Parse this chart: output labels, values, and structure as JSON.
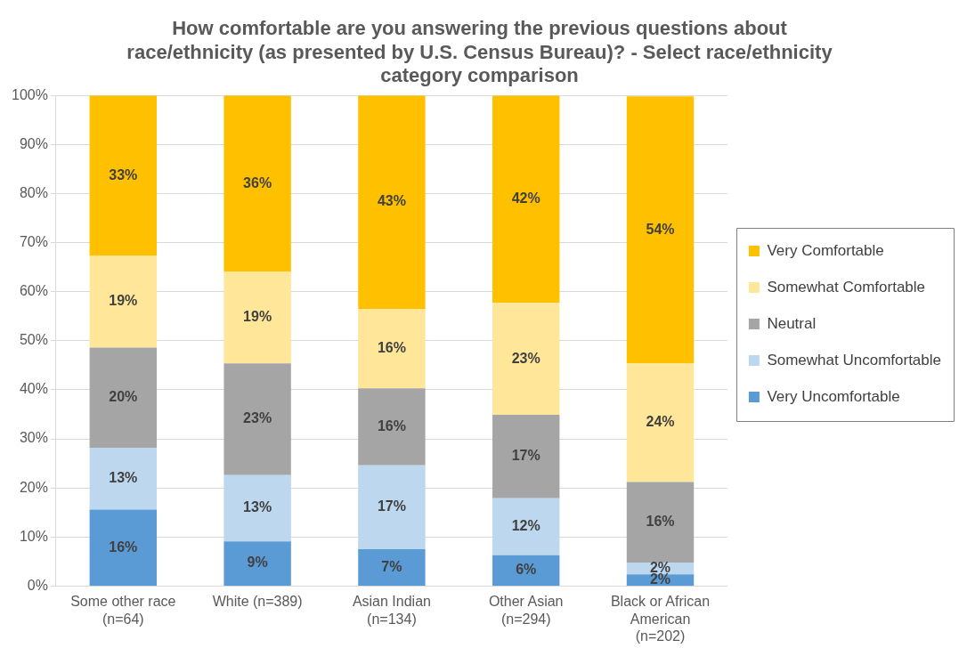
{
  "chart_data": {
    "type": "bar",
    "stacked": true,
    "title": "How comfortable are you answering the previous questions about race/ethnicity (as presented by U.S. Census Bureau)? - Select race/ethnicity category comparison",
    "categories": [
      "Some other race (n=64)",
      "White (n=389)",
      "Asian Indian (n=134)",
      "Other Asian (n=294)",
      "Black or African American (n=202)"
    ],
    "series": [
      {
        "name": "Very Uncomfortable",
        "color": "#5b9bd5",
        "values": [
          15.6,
          9.1,
          7.5,
          6.3,
          2.4
        ],
        "value_labels": [
          "16%",
          "9%",
          "7%",
          "6%",
          "2%"
        ]
      },
      {
        "name": "Somewhat Uncomfortable",
        "color": "#bdd7ee",
        "values": [
          12.6,
          13.5,
          17.1,
          11.6,
          2.4
        ],
        "value_labels": [
          "13%",
          "13%",
          "17%",
          "12%",
          "2%"
        ]
      },
      {
        "name": "Neutral",
        "color": "#a5a5a5",
        "values": [
          20.4,
          22.8,
          15.7,
          17.0,
          16.4
        ],
        "value_labels": [
          "20%",
          "23%",
          "16%",
          "17%",
          "16%"
        ]
      },
      {
        "name": "Somewhat Comfortable",
        "color": "#ffe699",
        "values": [
          18.7,
          18.7,
          16.2,
          22.8,
          24.2
        ],
        "value_labels": [
          "19%",
          "19%",
          "16%",
          "23%",
          "24%"
        ]
      },
      {
        "name": "Very Comfortable",
        "color": "#ffc000",
        "values": [
          32.7,
          35.9,
          43.5,
          42.3,
          54.4
        ],
        "value_labels": [
          "33%",
          "36%",
          "43%",
          "42%",
          "54%"
        ]
      }
    ],
    "ylim": [
      0,
      100
    ],
    "yticks": [
      {
        "value": 0,
        "label": "0%"
      },
      {
        "value": 10,
        "label": "10%"
      },
      {
        "value": 20,
        "label": "20%"
      },
      {
        "value": 30,
        "label": "30%"
      },
      {
        "value": 40,
        "label": "40%"
      },
      {
        "value": 50,
        "label": "50%"
      },
      {
        "value": 60,
        "label": "60%"
      },
      {
        "value": 70,
        "label": "70%"
      },
      {
        "value": 80,
        "label": "80%"
      },
      {
        "value": 90,
        "label": "90%"
      },
      {
        "value": 100,
        "label": "100%"
      }
    ],
    "grid": "y",
    "legend": "right"
  }
}
